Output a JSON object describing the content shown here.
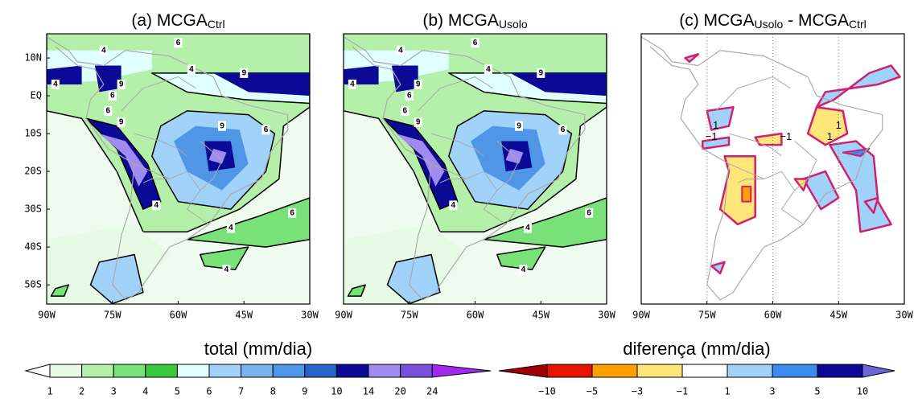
{
  "panels": [
    {
      "title_parts": [
        {
          "text": "(a) MCGA",
          "sub": false
        },
        {
          "text": "Ctrl",
          "sub": true
        }
      ],
      "xticks": [
        "90W",
        "75W",
        "60W",
        "45W",
        "30W"
      ],
      "yticks": [
        "10N",
        "EQ",
        "10S",
        "20S",
        "30S",
        "40S",
        "50S"
      ],
      "contour_labels": [
        "6",
        "4",
        "4",
        "9",
        "4",
        "9",
        "6",
        "6",
        "9",
        "6",
        "9",
        "4",
        "4",
        "6",
        "4"
      ]
    },
    {
      "title_parts": [
        {
          "text": "(b) MCGA",
          "sub": false
        },
        {
          "text": "Usolo",
          "sub": true
        }
      ],
      "xticks": [
        "90W",
        "75W",
        "60W",
        "45W",
        "30W"
      ],
      "yticks": [],
      "contour_labels": [
        "6",
        "4",
        "4",
        "9",
        "4",
        "9",
        "6",
        "6",
        "9",
        "6",
        "9",
        "4",
        "4",
        "6",
        "4"
      ]
    },
    {
      "title_parts": [
        {
          "text": "(c) MCGA",
          "sub": false
        },
        {
          "text": "Usolo",
          "sub": true
        },
        {
          "text": " - MCGA",
          "sub": false
        },
        {
          "text": "Ctrl",
          "sub": true
        }
      ],
      "xticks": [
        "90W",
        "75W",
        "60W",
        "45W",
        "30W"
      ],
      "yticks": [],
      "contour_labels": [
        "1",
        "−1",
        "−1",
        "1",
        "1"
      ]
    }
  ],
  "colorbars": [
    {
      "title": "total (mm/dia)",
      "colors": [
        "#ffffff",
        "#e6fae6",
        "#b4f0aa",
        "#78e178",
        "#3cc83c",
        "#e1ffff",
        "#a0d2fa",
        "#78b4f0",
        "#5096e6",
        "#2864c8",
        "#0a0a96",
        "#a08cf0",
        "#7850dc",
        "#a028f0"
      ],
      "ticks": [
        1,
        2,
        3,
        4,
        5,
        6,
        7,
        8,
        9,
        10,
        14,
        20,
        24
      ]
    },
    {
      "title": "diferença (mm/dia)",
      "colors": [
        "#a00000",
        "#e61400",
        "#ffa000",
        "#ffe678",
        "#ffffff",
        "#a0d2fa",
        "#3c8cf0",
        "#0a0a96",
        "#6e64dc"
      ],
      "ticks": [
        {
          "value": -10,
          "label": "−10"
        },
        {
          "value": -5,
          "label": "−5"
        },
        {
          "value": -3,
          "label": "−3"
        },
        {
          "value": -1,
          "label": "−1"
        },
        1,
        3,
        5,
        10
      ]
    }
  ]
}
